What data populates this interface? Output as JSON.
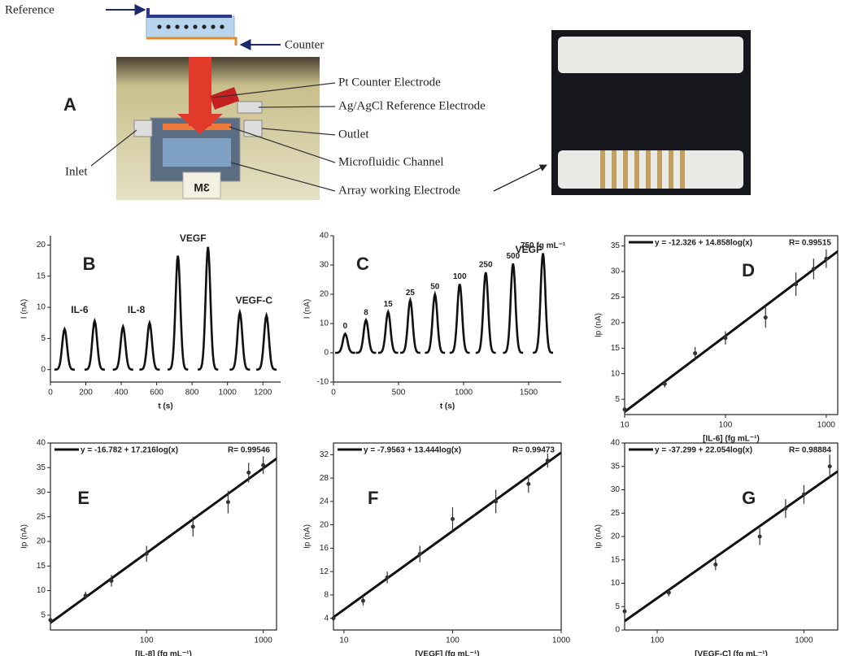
{
  "panel_a": {
    "panel": "A",
    "reference": "Reference",
    "counter": "Counter",
    "pt_counter": "Pt Counter Electrode",
    "ag_reference": "Ag/AgCl Reference Electrode",
    "outlet": "Outlet",
    "channel": "Microfluidic Channel",
    "array": "Array working Electrode",
    "inlet": "Inlet",
    "brand": "3M"
  },
  "chart_data": [
    {
      "type": "peaks",
      "panel": "B",
      "xlabel": "t (s)",
      "ylabel": "I (nA)",
      "x": [
        80,
        250,
        410,
        560,
        720,
        890,
        1070,
        1220
      ],
      "values": [
        6.5,
        7.8,
        6.9,
        7.5,
        18.3,
        19.7,
        9.2,
        8.7
      ],
      "xlim": [
        0,
        1300
      ],
      "xticks": [
        0,
        200,
        400,
        600,
        800,
        1000,
        1200
      ],
      "ylim": [
        -2,
        21.5
      ],
      "yticks": [
        0,
        5,
        10,
        15,
        20
      ],
      "annotations": [
        {
          "text": "IL-6",
          "x": 165,
          "y": 9.5
        },
        {
          "text": "IL-8",
          "x": 485,
          "y": 9.5
        },
        {
          "text": "VEGF",
          "x": 805,
          "y": 21
        },
        {
          "text": "VEGF-C",
          "x": 1150,
          "y": 11
        }
      ]
    },
    {
      "type": "peaks",
      "panel": "C",
      "xlabel": "t (s)",
      "ylabel": "I (nA)",
      "x": [
        90,
        250,
        420,
        590,
        780,
        970,
        1170,
        1380,
        1610
      ],
      "values": [
        6.5,
        11.2,
        14,
        18,
        20,
        23.5,
        27.5,
        30.5,
        34
      ],
      "peak_labels": [
        "0",
        "8",
        "15",
        "25",
        "50",
        "100",
        "250",
        "500",
        "750 fg mL⁻¹"
      ],
      "xlim": [
        0,
        1750
      ],
      "xticks": [
        0,
        500,
        1000,
        1500
      ],
      "ylim": [
        -10,
        40
      ],
      "yticks": [
        -10,
        0,
        10,
        20,
        30,
        40
      ],
      "annotations": [
        {
          "text": "VEGF",
          "x": 1500,
          "y": 35
        }
      ]
    },
    {
      "type": "scatter",
      "panel": "D",
      "xlabel": "[IL-6] (fg mL⁻¹)",
      "ylabel": "Ip (nA)",
      "log_x": true,
      "x": [
        10,
        25,
        50,
        100,
        250,
        500,
        750,
        1000
      ],
      "values": [
        3,
        8,
        14,
        17,
        21,
        27.5,
        30.5,
        32.5
      ],
      "errors": [
        0.6,
        0.7,
        1.2,
        1.3,
        2,
        2.3,
        2,
        1.8
      ],
      "fit": {
        "label": "y = -12.326 + 14.858log(x)",
        "intercept": -12.326,
        "slope": 14.858
      },
      "r_label": "R= 0.99515",
      "xlim": [
        10,
        1300
      ],
      "xticks": [
        10,
        100,
        1000
      ],
      "ylim": [
        2,
        37
      ],
      "yticks": [
        5,
        10,
        15,
        20,
        25,
        30,
        35
      ]
    },
    {
      "type": "scatter",
      "panel": "E",
      "xlabel": "[IL-8] (fg mL⁻¹)",
      "ylabel": "Ip (nA)",
      "log_x": true,
      "x": [
        15,
        30,
        50,
        100,
        250,
        500,
        750,
        1000
      ],
      "values": [
        4,
        9,
        12,
        17.5,
        23,
        28,
        34,
        35.5
      ],
      "errors": [
        0.6,
        0.8,
        1.2,
        1.6,
        2,
        2.3,
        2,
        1.8
      ],
      "fit": {
        "label": "y = -16.782 + 17.216log(x)",
        "intercept": -16.782,
        "slope": 17.216
      },
      "r_label": "R= 0.99546",
      "xlim": [
        15,
        1300
      ],
      "xticks": [
        100,
        1000
      ],
      "ylim": [
        2,
        40
      ],
      "yticks": [
        5,
        10,
        15,
        20,
        25,
        30,
        35,
        40
      ]
    },
    {
      "type": "scatter",
      "panel": "F",
      "xlabel": "[VEGF] (fg mL⁻¹)",
      "ylabel": "Ip (nA)",
      "log_x": true,
      "x": [
        8,
        15,
        25,
        50,
        100,
        250,
        500,
        750
      ],
      "values": [
        4,
        7,
        11,
        15,
        21,
        24,
        27,
        31
      ],
      "errors": [
        0.5,
        0.8,
        1,
        1.4,
        2,
        2,
        1.5,
        1.2
      ],
      "fit": {
        "label": "y = -7.9563 + 13.444log(x)",
        "intercept": -7.9563,
        "slope": 13.444
      },
      "r_label": "R= 0.99473",
      "xlim": [
        8,
        1000
      ],
      "xticks": [
        10,
        100,
        1000
      ],
      "ylim": [
        2,
        34
      ],
      "yticks": [
        4,
        8,
        12,
        16,
        20,
        24,
        28,
        32
      ]
    },
    {
      "type": "scatter",
      "panel": "G",
      "xlabel": "[VEGF-C] (fg mL⁻¹)",
      "ylabel": "Ip (nA)",
      "log_x": true,
      "x": [
        60,
        120,
        250,
        500,
        750,
        1000,
        1500
      ],
      "values": [
        4,
        8,
        14,
        20,
        26,
        29,
        35
      ],
      "errors": [
        0.6,
        0.8,
        1.2,
        1.8,
        2,
        2,
        2.5
      ],
      "fit": {
        "label": "y = -37.299 + 22.054log(x)",
        "intercept": -37.299,
        "slope": 22.054
      },
      "r_label": "R= 0.98884",
      "xlim": [
        60,
        1700
      ],
      "xticks": [
        100,
        1000
      ],
      "ylim": [
        0,
        40
      ],
      "yticks": [
        0,
        5,
        10,
        15,
        20,
        25,
        30,
        35,
        40
      ]
    }
  ]
}
